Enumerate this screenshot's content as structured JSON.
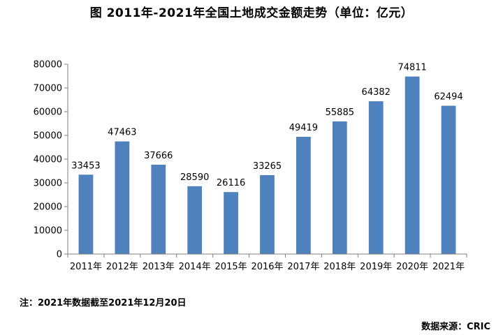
{
  "chart_data": {
    "type": "bar",
    "title": "图   2011年-2021年全国土地成交金额走势（单位：亿元）",
    "categories": [
      "2011年",
      "2012年",
      "2013年",
      "2014年",
      "2015年",
      "2016年",
      "2017年",
      "2018年",
      "2019年",
      "2020年",
      "2021年"
    ],
    "values": [
      33453,
      47463,
      37666,
      28590,
      26116,
      33265,
      49419,
      55885,
      64382,
      74811,
      62494
    ],
    "yticks": [
      0,
      10000,
      20000,
      30000,
      40000,
      50000,
      60000,
      70000,
      80000
    ],
    "ylim": [
      0,
      80000
    ],
    "xlabel": "",
    "ylabel": "",
    "grid": false,
    "legend": "none",
    "bar_color": "#4f81bd"
  },
  "footnote": "注：2021年数据截至2021年12月20日",
  "source": "数据来源：CRIC"
}
